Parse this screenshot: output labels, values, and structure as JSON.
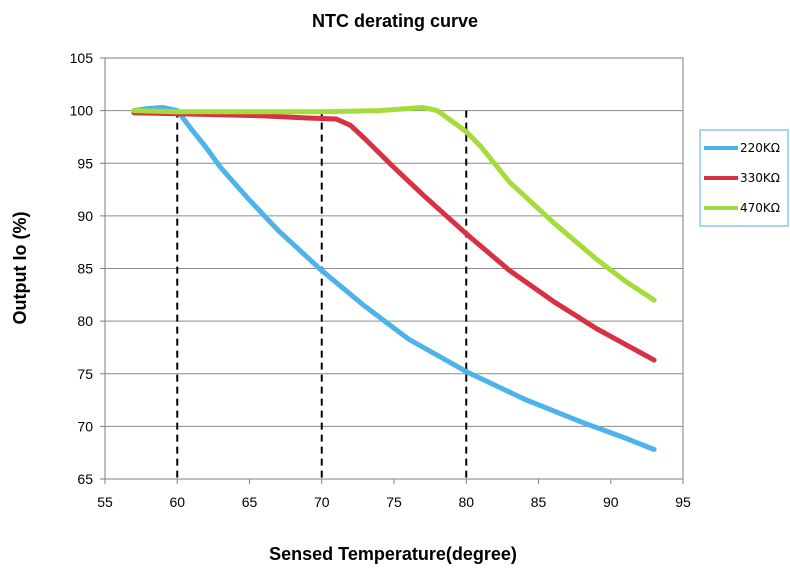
{
  "chart_data": {
    "type": "line",
    "title": "NTC  derating curve",
    "xlabel": "Sensed Temperature(degree)",
    "ylabel": "Output Io (%)",
    "xlim": [
      55,
      95
    ],
    "ylim": [
      65,
      105
    ],
    "x_ticks": [
      "55",
      "60",
      "65",
      "70",
      "75",
      "80",
      "85",
      "90",
      "95"
    ],
    "y_ticks": [
      "65",
      "70",
      "75",
      "80",
      "85",
      "90",
      "95",
      "100",
      "105"
    ],
    "grid": "horizontal",
    "legend_position": "right",
    "reference_lines_x": [
      60,
      70,
      80
    ],
    "series": [
      {
        "name": "220KΩ",
        "color": "#4db3ea",
        "points": [
          [
            57,
            100
          ],
          [
            58,
            100.2
          ],
          [
            59,
            100.3
          ],
          [
            60,
            100
          ],
          [
            61,
            98.2
          ],
          [
            62,
            96.5
          ],
          [
            63,
            94.6
          ],
          [
            65,
            91.5
          ],
          [
            67,
            88.6
          ],
          [
            70,
            84.8
          ],
          [
            73,
            81.4
          ],
          [
            76,
            78.3
          ],
          [
            80,
            75.2
          ],
          [
            84,
            72.6
          ],
          [
            88,
            70.4
          ],
          [
            91,
            68.9
          ],
          [
            93,
            67.8
          ]
        ]
      },
      {
        "name": "330KΩ",
        "color": "#d93144",
        "points": [
          [
            57,
            99.8
          ],
          [
            60,
            99.7
          ],
          [
            63,
            99.6
          ],
          [
            66,
            99.5
          ],
          [
            69,
            99.3
          ],
          [
            71,
            99.2
          ],
          [
            72,
            98.6
          ],
          [
            73,
            97.3
          ],
          [
            75,
            94.6
          ],
          [
            77,
            92.0
          ],
          [
            80,
            88.3
          ],
          [
            83,
            84.8
          ],
          [
            86,
            81.9
          ],
          [
            89,
            79.3
          ],
          [
            91,
            77.8
          ],
          [
            93,
            76.3
          ]
        ]
      },
      {
        "name": "470KΩ",
        "color": "#a5dc3a",
        "points": [
          [
            57,
            100
          ],
          [
            60,
            99.9
          ],
          [
            65,
            99.9
          ],
          [
            70,
            99.9
          ],
          [
            74,
            100
          ],
          [
            76,
            100.2
          ],
          [
            77,
            100.3
          ],
          [
            78,
            100
          ],
          [
            79,
            99
          ],
          [
            80,
            98
          ],
          [
            81,
            96.6
          ],
          [
            83,
            93.2
          ],
          [
            86,
            89.4
          ],
          [
            89,
            85.9
          ],
          [
            91,
            83.8
          ],
          [
            93,
            82
          ]
        ]
      }
    ]
  }
}
